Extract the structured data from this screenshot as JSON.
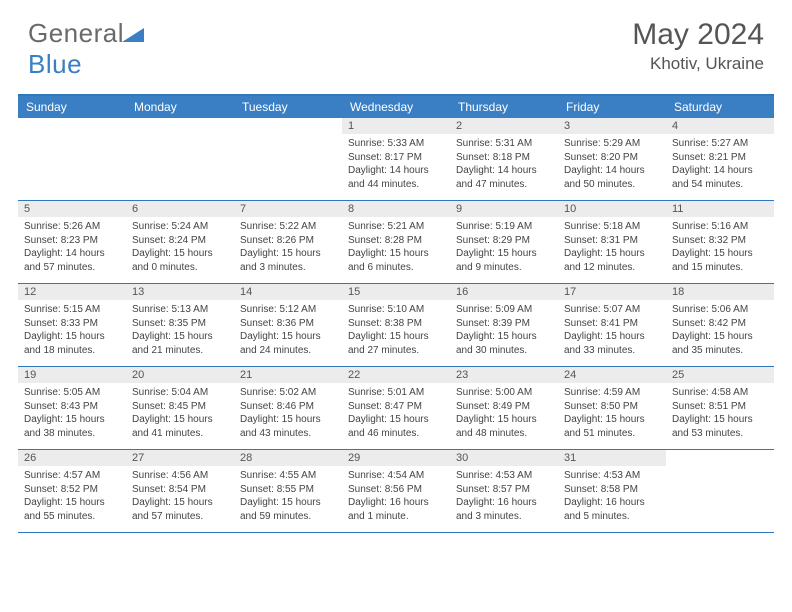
{
  "brand": {
    "part1": "General",
    "part2": "Blue"
  },
  "title": "May 2024",
  "location": "Khotiv, Ukraine",
  "colors": {
    "header_bg": "#3a7fc4",
    "border": "#2f78c0",
    "daynum_bg": "#ececec",
    "text": "#555555",
    "info_text": "#444444"
  },
  "dayNames": [
    "Sunday",
    "Monday",
    "Tuesday",
    "Wednesday",
    "Thursday",
    "Friday",
    "Saturday"
  ],
  "weeks": [
    [
      {
        "n": "",
        "sr": "",
        "ss": "",
        "dl": ""
      },
      {
        "n": "",
        "sr": "",
        "ss": "",
        "dl": ""
      },
      {
        "n": "",
        "sr": "",
        "ss": "",
        "dl": ""
      },
      {
        "n": "1",
        "sr": "5:33 AM",
        "ss": "8:17 PM",
        "dl": "14 hours and 44 minutes."
      },
      {
        "n": "2",
        "sr": "5:31 AM",
        "ss": "8:18 PM",
        "dl": "14 hours and 47 minutes."
      },
      {
        "n": "3",
        "sr": "5:29 AM",
        "ss": "8:20 PM",
        "dl": "14 hours and 50 minutes."
      },
      {
        "n": "4",
        "sr": "5:27 AM",
        "ss": "8:21 PM",
        "dl": "14 hours and 54 minutes."
      }
    ],
    [
      {
        "n": "5",
        "sr": "5:26 AM",
        "ss": "8:23 PM",
        "dl": "14 hours and 57 minutes."
      },
      {
        "n": "6",
        "sr": "5:24 AM",
        "ss": "8:24 PM",
        "dl": "15 hours and 0 minutes."
      },
      {
        "n": "7",
        "sr": "5:22 AM",
        "ss": "8:26 PM",
        "dl": "15 hours and 3 minutes."
      },
      {
        "n": "8",
        "sr": "5:21 AM",
        "ss": "8:28 PM",
        "dl": "15 hours and 6 minutes."
      },
      {
        "n": "9",
        "sr": "5:19 AM",
        "ss": "8:29 PM",
        "dl": "15 hours and 9 minutes."
      },
      {
        "n": "10",
        "sr": "5:18 AM",
        "ss": "8:31 PM",
        "dl": "15 hours and 12 minutes."
      },
      {
        "n": "11",
        "sr": "5:16 AM",
        "ss": "8:32 PM",
        "dl": "15 hours and 15 minutes."
      }
    ],
    [
      {
        "n": "12",
        "sr": "5:15 AM",
        "ss": "8:33 PM",
        "dl": "15 hours and 18 minutes."
      },
      {
        "n": "13",
        "sr": "5:13 AM",
        "ss": "8:35 PM",
        "dl": "15 hours and 21 minutes."
      },
      {
        "n": "14",
        "sr": "5:12 AM",
        "ss": "8:36 PM",
        "dl": "15 hours and 24 minutes."
      },
      {
        "n": "15",
        "sr": "5:10 AM",
        "ss": "8:38 PM",
        "dl": "15 hours and 27 minutes."
      },
      {
        "n": "16",
        "sr": "5:09 AM",
        "ss": "8:39 PM",
        "dl": "15 hours and 30 minutes."
      },
      {
        "n": "17",
        "sr": "5:07 AM",
        "ss": "8:41 PM",
        "dl": "15 hours and 33 minutes."
      },
      {
        "n": "18",
        "sr": "5:06 AM",
        "ss": "8:42 PM",
        "dl": "15 hours and 35 minutes."
      }
    ],
    [
      {
        "n": "19",
        "sr": "5:05 AM",
        "ss": "8:43 PM",
        "dl": "15 hours and 38 minutes."
      },
      {
        "n": "20",
        "sr": "5:04 AM",
        "ss": "8:45 PM",
        "dl": "15 hours and 41 minutes."
      },
      {
        "n": "21",
        "sr": "5:02 AM",
        "ss": "8:46 PM",
        "dl": "15 hours and 43 minutes."
      },
      {
        "n": "22",
        "sr": "5:01 AM",
        "ss": "8:47 PM",
        "dl": "15 hours and 46 minutes."
      },
      {
        "n": "23",
        "sr": "5:00 AM",
        "ss": "8:49 PM",
        "dl": "15 hours and 48 minutes."
      },
      {
        "n": "24",
        "sr": "4:59 AM",
        "ss": "8:50 PM",
        "dl": "15 hours and 51 minutes."
      },
      {
        "n": "25",
        "sr": "4:58 AM",
        "ss": "8:51 PM",
        "dl": "15 hours and 53 minutes."
      }
    ],
    [
      {
        "n": "26",
        "sr": "4:57 AM",
        "ss": "8:52 PM",
        "dl": "15 hours and 55 minutes."
      },
      {
        "n": "27",
        "sr": "4:56 AM",
        "ss": "8:54 PM",
        "dl": "15 hours and 57 minutes."
      },
      {
        "n": "28",
        "sr": "4:55 AM",
        "ss": "8:55 PM",
        "dl": "15 hours and 59 minutes."
      },
      {
        "n": "29",
        "sr": "4:54 AM",
        "ss": "8:56 PM",
        "dl": "16 hours and 1 minute."
      },
      {
        "n": "30",
        "sr": "4:53 AM",
        "ss": "8:57 PM",
        "dl": "16 hours and 3 minutes."
      },
      {
        "n": "31",
        "sr": "4:53 AM",
        "ss": "8:58 PM",
        "dl": "16 hours and 5 minutes."
      },
      {
        "n": "",
        "sr": "",
        "ss": "",
        "dl": ""
      }
    ]
  ],
  "labels": {
    "sunrise": "Sunrise:",
    "sunset": "Sunset:",
    "daylight": "Daylight:"
  }
}
